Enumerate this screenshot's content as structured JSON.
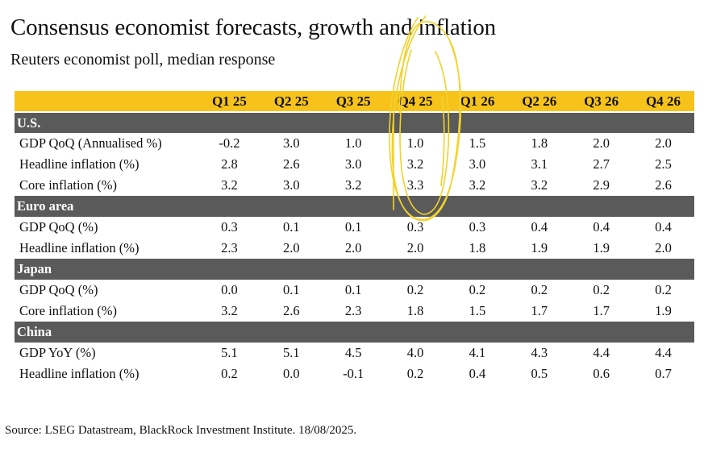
{
  "title": "Consensus economist forecasts, growth and inflation",
  "subtitle": "Reuters economist poll, median response",
  "columns": [
    "Q1 25",
    "Q2 25",
    "Q3 25",
    "Q4 25",
    "Q1 26",
    "Q2 26",
    "Q3 26",
    "Q4 26"
  ],
  "sections": [
    {
      "name": "U.S.",
      "rows": [
        {
          "label": "GDP QoQ (Annualised %)",
          "values": [
            "-0.2",
            "3.0",
            "1.0",
            "1.0",
            "1.5",
            "1.8",
            "2.0",
            "2.0"
          ]
        },
        {
          "label": "Headline inflation (%)",
          "values": [
            "2.8",
            "2.6",
            "3.0",
            "3.2",
            "3.0",
            "3.1",
            "2.7",
            "2.5"
          ]
        },
        {
          "label": "Core inflation (%)",
          "values": [
            "3.2",
            "3.0",
            "3.2",
            "3.3",
            "3.2",
            "3.2",
            "2.9",
            "2.6"
          ]
        }
      ]
    },
    {
      "name": "Euro area",
      "rows": [
        {
          "label": "GDP QoQ (%)",
          "values": [
            "0.3",
            "0.1",
            "0.1",
            "0.3",
            "0.3",
            "0.4",
            "0.4",
            "0.4"
          ]
        },
        {
          "label": "Headline inflation (%)",
          "values": [
            "2.3",
            "2.0",
            "2.0",
            "2.0",
            "1.8",
            "1.9",
            "1.9",
            "2.0"
          ]
        }
      ]
    },
    {
      "name": "Japan",
      "rows": [
        {
          "label": "GDP QoQ (%)",
          "values": [
            "0.0",
            "0.1",
            "0.1",
            "0.2",
            "0.2",
            "0.2",
            "0.2",
            "0.2"
          ]
        },
        {
          "label": "Core inflation (%)",
          "values": [
            "3.2",
            "2.6",
            "2.3",
            "1.8",
            "1.5",
            "1.7",
            "1.7",
            "1.9"
          ]
        }
      ]
    },
    {
      "name": "China",
      "rows": [
        {
          "label": "GDP YoY (%)",
          "values": [
            "5.1",
            "5.1",
            "4.5",
            "4.0",
            "4.1",
            "4.3",
            "4.4",
            "4.4"
          ]
        },
        {
          "label": "Headline inflation (%)",
          "values": [
            "0.2",
            "0.0",
            "-0.1",
            "0.2",
            "0.4",
            "0.5",
            "0.6",
            "0.7"
          ]
        }
      ]
    }
  ],
  "source": "Source: LSEG Datastream, BlackRock Investment Institute. 18/08/2025.",
  "colors": {
    "header_bg": "#f7c31a",
    "section_bg": "#5a5a5a",
    "annotation": "#f2d22e"
  }
}
